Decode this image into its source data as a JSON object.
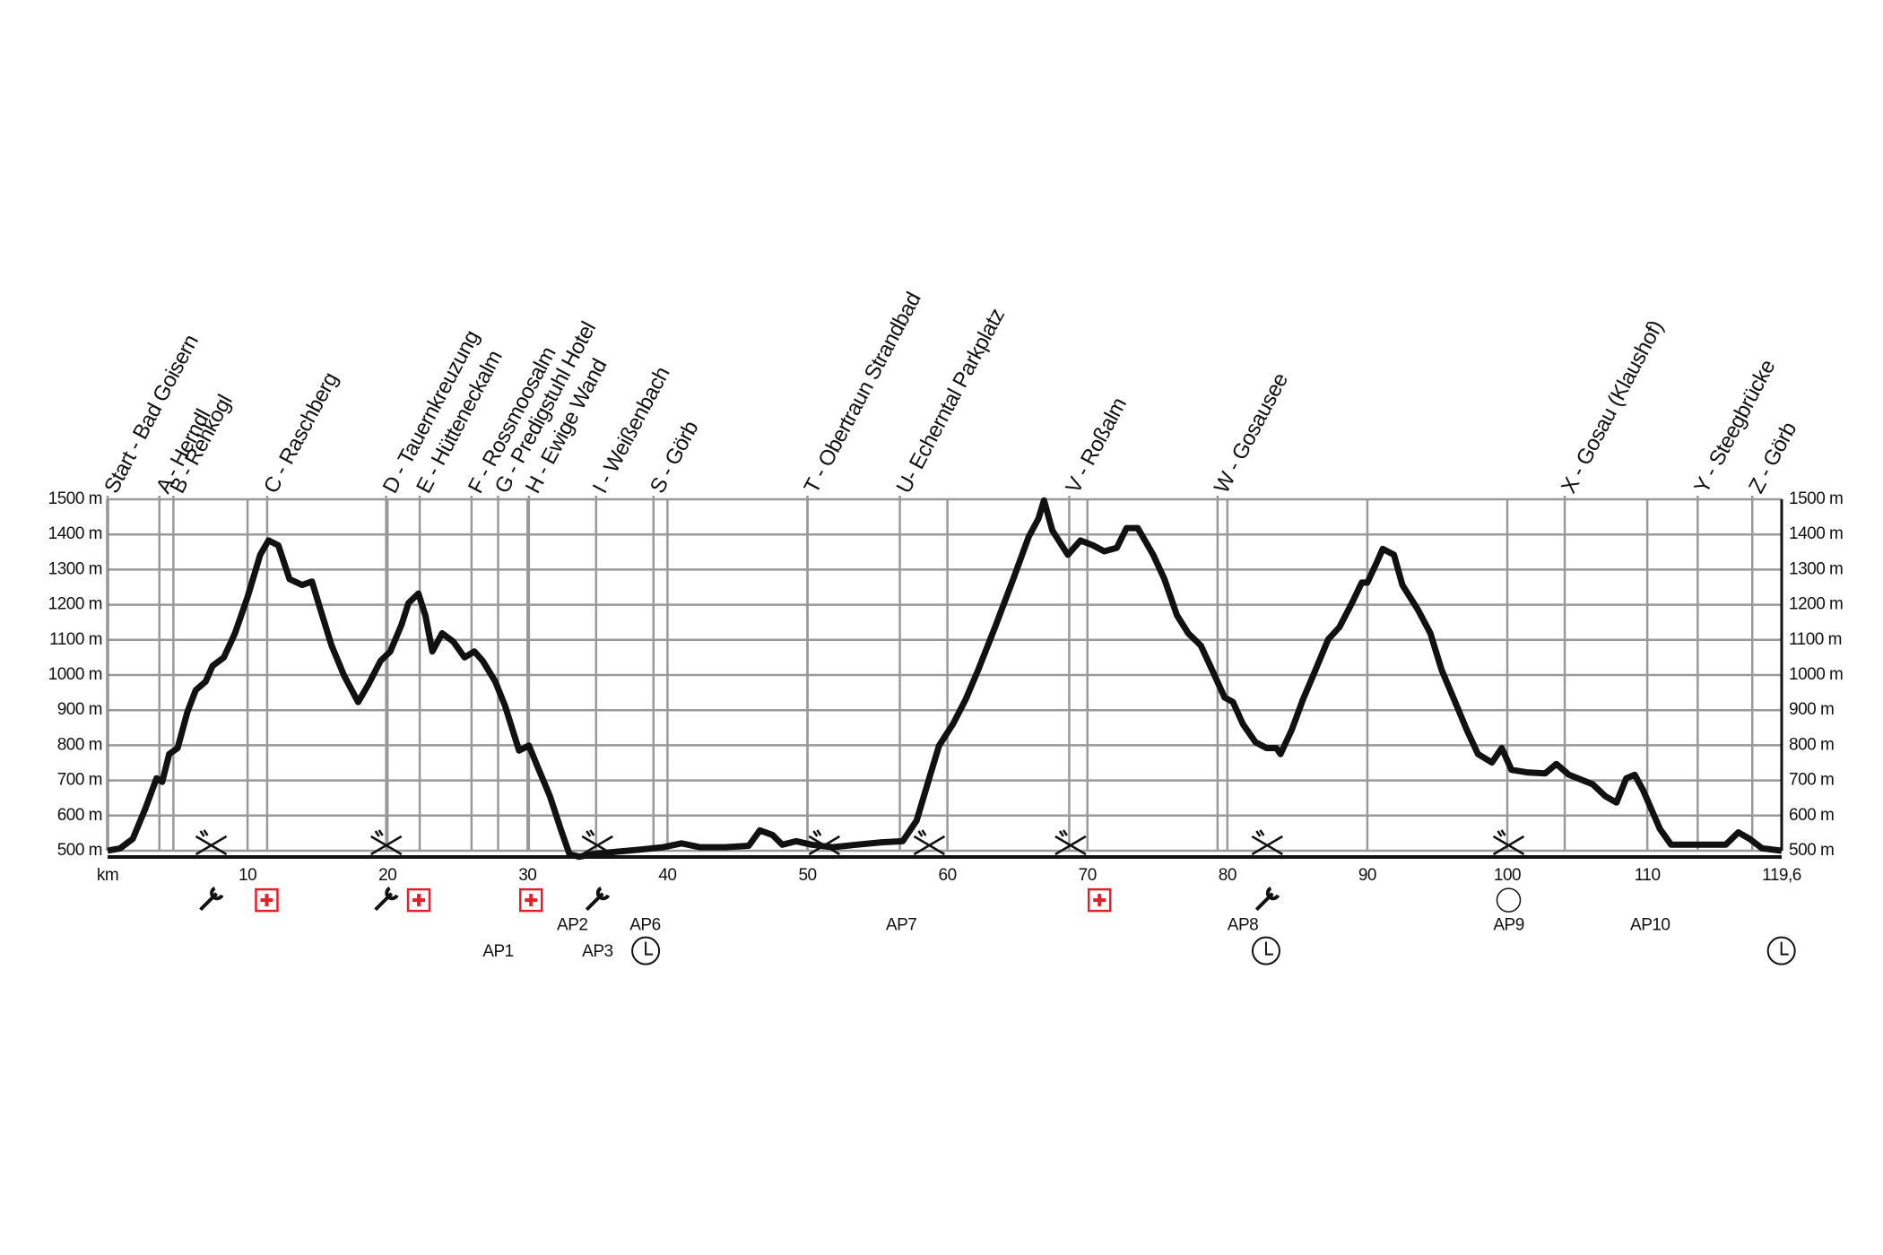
{
  "chart_data": {
    "type": "line",
    "series": [
      {
        "color": "#111111",
        "x": [
          0,
          0.9,
          1.8,
          2.7,
          3.5,
          3.9,
          4.4,
          5.0,
          5.7,
          6.3,
          7.0,
          7.5,
          8.3,
          9.1,
          10.0,
          10.9,
          11.5,
          12.2,
          13.0,
          13.9,
          14.6,
          15.2,
          16.0,
          16.9,
          17.9,
          18.6,
          19.5,
          20.2,
          21.0,
          21.5,
          22.2,
          22.7,
          23.2,
          23.9,
          24.7,
          25.5,
          26.2,
          26.8,
          27.7,
          28.4,
          29.4,
          30.1,
          30.7,
          31.6,
          32.4,
          33.0,
          33.7,
          34.6,
          36.3,
          38.0,
          39.7,
          41.0,
          42.3,
          44.1,
          45.8,
          46.6,
          47.5,
          48.2,
          49.2,
          50.3,
          51.8,
          53.5,
          55.3,
          56.8,
          57.8,
          58.7,
          59.4,
          60.4,
          61.3,
          62.2,
          63.4,
          64.7,
          65.8,
          66.5,
          66.9,
          67.5,
          68.6,
          69.5,
          70.4,
          71.2,
          72.1,
          72.8,
          73.6,
          74.7,
          75.5,
          76.4,
          77.2,
          78.1,
          78.9,
          79.8,
          80.4,
          81.1,
          82.0,
          82.8,
          83.5,
          83.8,
          84.6,
          85.4,
          86.3,
          87.2,
          88.0,
          88.9,
          89.6,
          90.0,
          90.6,
          91.1,
          91.9,
          92.5,
          93.6,
          94.5,
          95.3,
          96.2,
          97.1,
          97.9,
          98.9,
          99.6,
          100.3,
          101.4,
          102.7,
          103.5,
          104.4,
          106.1,
          107.0,
          107.8,
          108.5,
          109.1,
          109.7,
          110.9,
          111.7,
          113.9,
          115.6,
          116.5,
          117.3,
          118.2,
          119.6
        ],
        "values": [
          500,
          507,
          534,
          620,
          706,
          696,
          775,
          792,
          895,
          957,
          981,
          1026,
          1050,
          1119,
          1222,
          1342,
          1383,
          1369,
          1273,
          1256,
          1266,
          1187,
          1084,
          998,
          923,
          971,
          1040,
          1067,
          1143,
          1205,
          1232,
          1170,
          1067,
          1119,
          1095,
          1050,
          1067,
          1040,
          981,
          912,
          785,
          799,
          741,
          655,
          558,
          490,
          483,
          490,
          497,
          503,
          510,
          521,
          510,
          510,
          514,
          558,
          545,
          517,
          527,
          517,
          510,
          517,
          524,
          527,
          586,
          706,
          799,
          861,
          930,
          1015,
          1136,
          1273,
          1393,
          1445,
          1497,
          1411,
          1342,
          1383,
          1369,
          1352,
          1362,
          1418,
          1418,
          1342,
          1273,
          1170,
          1119,
          1084,
          1015,
          936,
          923,
          861,
          809,
          792,
          792,
          775,
          844,
          930,
          1015,
          1101,
          1136,
          1205,
          1263,
          1263,
          1314,
          1359,
          1342,
          1256,
          1187,
          1119,
          1015,
          930,
          844,
          775,
          751,
          792,
          730,
          723,
          720,
          747,
          716,
          689,
          655,
          637,
          706,
          716,
          672,
          562,
          517,
          517,
          517,
          552,
          534,
          507,
          500
        ]
      }
    ],
    "xlim": [
      0,
      119.6
    ],
    "ylim": [
      500,
      1500
    ],
    "xticks": [
      {
        "value": 0,
        "label": "km"
      },
      10,
      20,
      30,
      40,
      50,
      60,
      70,
      80,
      90,
      100,
      110,
      {
        "value": 119.6,
        "label": "119,6"
      }
    ],
    "yticks": [
      {
        "value": 500,
        "label": "500 m"
      },
      {
        "value": 600,
        "label": "600 m"
      },
      {
        "value": 700,
        "label": "700 m"
      },
      {
        "value": 800,
        "label": "800 m"
      },
      {
        "value": 900,
        "label": "900 m"
      },
      {
        "value": 1000,
        "label": "1000 m"
      },
      {
        "value": 1100,
        "label": "1100 m"
      },
      {
        "value": 1200,
        "label": "1200 m"
      },
      {
        "value": 1300,
        "label": "1300 m"
      },
      {
        "value": 1400,
        "label": "1400 m"
      },
      {
        "value": 1500,
        "label": "1500 m"
      }
    ],
    "grid": true,
    "markers": [
      {
        "x": 0,
        "label": "Start - Bad Goisern"
      },
      {
        "x": 3.7,
        "label": "A - Herndl"
      },
      {
        "x": 4.7,
        "label": "B - Rehkogl"
      },
      {
        "x": 11.4,
        "label": "C - Raschberg"
      },
      {
        "x": 19.9,
        "label": "D - Tauernkreuzung"
      },
      {
        "x": 22.3,
        "label": "E - Hütteneckalm"
      },
      {
        "x": 26.0,
        "label": "F - Rossmoosalm"
      },
      {
        "x": 27.9,
        "label": "G - Predigstuhl Hotel"
      },
      {
        "x": 30.1,
        "label": "H - Ewige Wand"
      },
      {
        "x": 34.9,
        "label": "I - Weißenbach"
      },
      {
        "x": 39.0,
        "label": "S - Görb"
      },
      {
        "x": 50.0,
        "label": "T - Obertraun Strandbad"
      },
      {
        "x": 56.6,
        "label": "U- Echerntal Parkplatz"
      },
      {
        "x": 68.7,
        "label": "V - Roßalm"
      },
      {
        "x": 79.3,
        "label": "W - Gosausee"
      },
      {
        "x": 104.1,
        "label": "X - Gosau (Klaushof)"
      },
      {
        "x": 113.6,
        "label": "Y - Steegbrücke"
      },
      {
        "x": 117.5,
        "label": "Z - Görb"
      }
    ],
    "aid_stations": [
      {
        "x": 27.9,
        "label": "AP1"
      },
      {
        "x": 33.2,
        "label": "AP2"
      },
      {
        "x": 35.0,
        "label": "AP3"
      },
      {
        "x": 38.4,
        "label": "AP6"
      },
      {
        "x": 56.7,
        "label": "AP7"
      },
      {
        "x": 81.1,
        "label": "AP8"
      },
      {
        "x": 100.1,
        "label": "AP9"
      },
      {
        "x": 110.2,
        "label": "AP10"
      }
    ]
  }
}
